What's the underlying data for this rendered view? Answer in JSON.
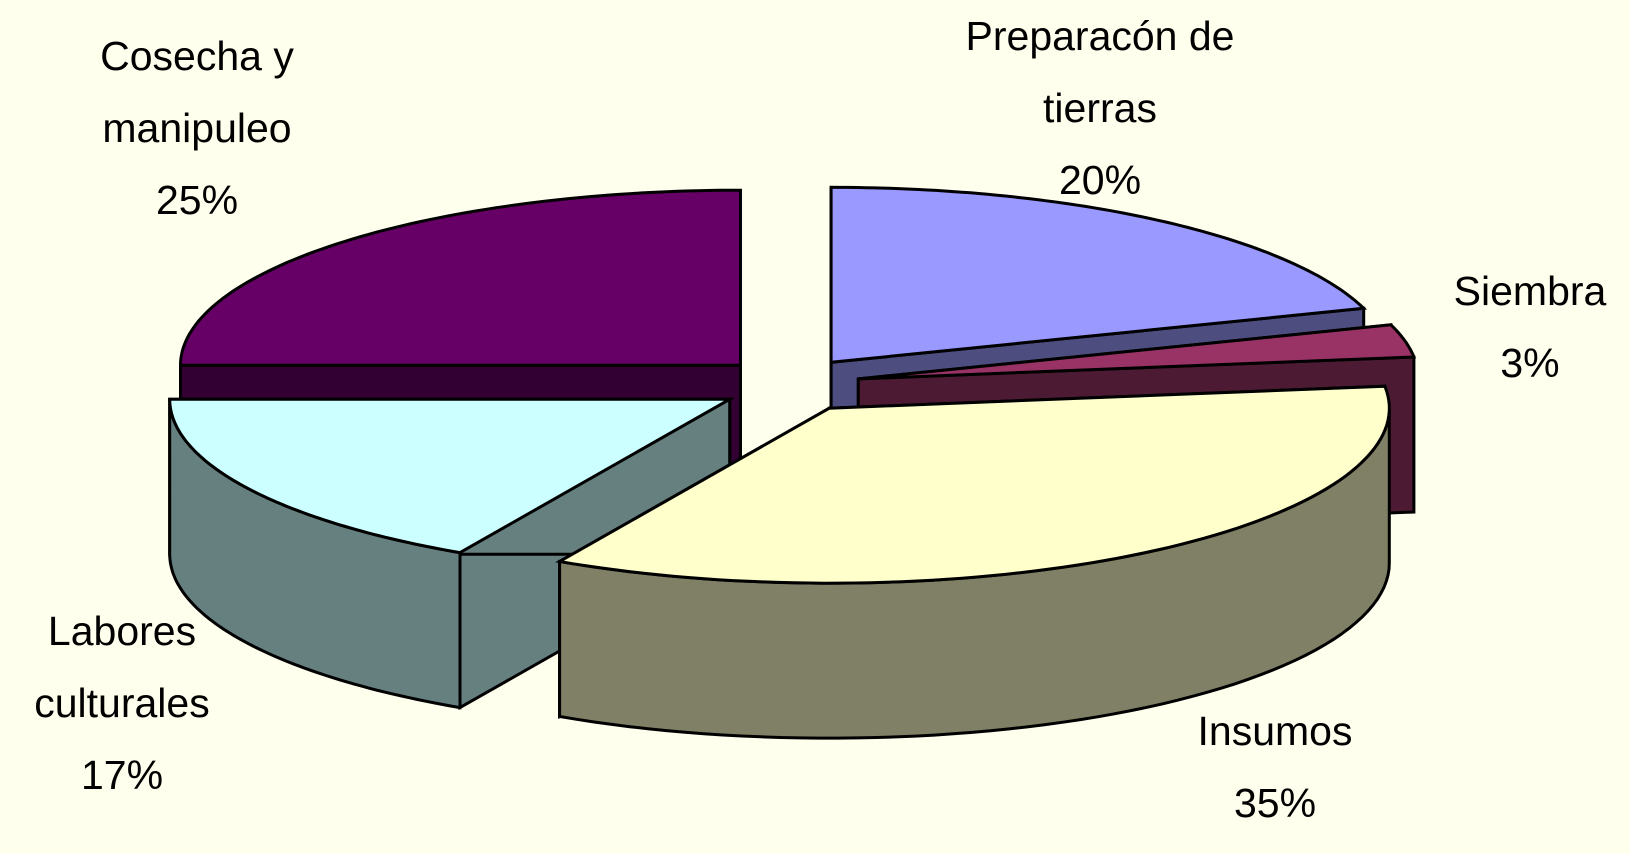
{
  "chart_data": {
    "type": "pie",
    "categories": [
      "Preparacón de tierras",
      "Siembra",
      "Insumos",
      "Labores culturales",
      "Cosecha y manipuleo"
    ],
    "values": [
      20,
      3,
      35,
      17,
      25
    ],
    "value_labels": [
      "20%",
      "3%",
      "35%",
      "17%",
      "25%"
    ],
    "colors": [
      "#9999ff",
      "#993366",
      "#ffffcc",
      "#ccffff",
      "#660066"
    ]
  }
}
